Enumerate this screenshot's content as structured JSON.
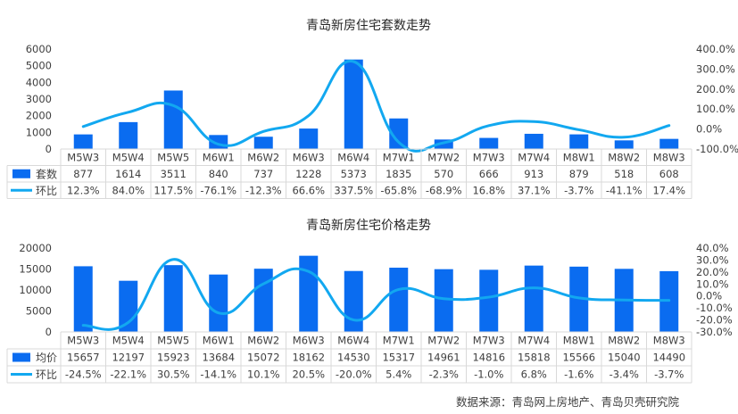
{
  "source_note": "数据来源：青岛网上房地产、青岛贝壳研究院",
  "colors": {
    "bar": "#0a6cf0",
    "line": "#12a8f0",
    "grid": "#d9d9d9",
    "text": "#404040"
  },
  "chart_data": [
    {
      "type": "bar+line",
      "title": "青岛新房住宅套数走势",
      "categories": [
        "M5W3",
        "M5W4",
        "M5W5",
        "M6W1",
        "M6W2",
        "M6W3",
        "M6W4",
        "M7W1",
        "M7W2",
        "M7W3",
        "M7W4",
        "M8W1",
        "M8W2",
        "M8W3"
      ],
      "bar_series": {
        "name": "套数",
        "values": [
          877,
          1614,
          3511,
          840,
          737,
          1228,
          5373,
          1835,
          570,
          666,
          913,
          879,
          518,
          608
        ]
      },
      "line_series": {
        "name": "环比",
        "values": [
          12.3,
          84.0,
          117.5,
          -76.1,
          -12.3,
          66.6,
          337.5,
          -65.8,
          -68.9,
          16.8,
          37.1,
          -3.7,
          -41.1,
          17.4
        ],
        "labels": [
          "12.3%",
          "84.0%",
          "117.5%",
          "-76.1%",
          "-12.3%",
          "66.6%",
          "337.5%",
          "-65.8%",
          "-68.9%",
          "16.8%",
          "37.1%",
          "-3.7%",
          "-41.1%",
          "17.4%"
        ]
      },
      "y_left": {
        "min": 0,
        "max": 6000,
        "ticks": [
          "0",
          "1000",
          "2000",
          "3000",
          "4000",
          "5000",
          "6000"
        ]
      },
      "y_right": {
        "min": -100,
        "max": 400,
        "ticks": [
          "-100.0%",
          "0.0%",
          "100.0%",
          "200.0%",
          "300.0%",
          "400.0%"
        ]
      },
      "bar_labels": [
        "877",
        "1614",
        "3511",
        "840",
        "737",
        "1228",
        "5373",
        "1835",
        "570",
        "666",
        "913",
        "879",
        "518",
        "608"
      ],
      "legend": "data-table"
    },
    {
      "type": "bar+line",
      "title": "青岛新房住宅价格走势",
      "categories": [
        "M5W3",
        "M5W4",
        "M5W5",
        "M6W1",
        "M6W2",
        "M6W3",
        "M6W4",
        "M7W1",
        "M7W2",
        "M7W3",
        "M7W4",
        "M8W1",
        "M8W2",
        "M8W3"
      ],
      "bar_series": {
        "name": "均价",
        "values": [
          15657,
          12197,
          15923,
          13684,
          15072,
          18162,
          14530,
          15317,
          14961,
          14816,
          15818,
          15566,
          15040,
          14490
        ]
      },
      "line_series": {
        "name": "环比",
        "values": [
          -24.5,
          -22.1,
          30.5,
          -14.1,
          10.1,
          20.5,
          -20.0,
          5.4,
          -2.3,
          -1.0,
          6.8,
          -1.6,
          -3.4,
          -3.7
        ],
        "labels": [
          "-24.5%",
          "-22.1%",
          "30.5%",
          "-14.1%",
          "10.1%",
          "20.5%",
          "-20.0%",
          "5.4%",
          "-2.3%",
          "-1.0%",
          "6.8%",
          "-1.6%",
          "-3.4%",
          "-3.7%"
        ]
      },
      "y_left": {
        "min": 0,
        "max": 20000,
        "ticks": [
          "0",
          "5000",
          "10000",
          "15000",
          "20000"
        ]
      },
      "y_right": {
        "min": -30,
        "max": 40,
        "ticks": [
          "-30.0%",
          "-20.0%",
          "-10.0%",
          "0.0%",
          "10.0%",
          "20.0%",
          "30.0%",
          "40.0%"
        ]
      },
      "bar_labels": [
        "15657",
        "12197",
        "15923",
        "13684",
        "15072",
        "18162",
        "14530",
        "15317",
        "14961",
        "14816",
        "15818",
        "15566",
        "15040",
        "14490"
      ],
      "legend": "data-table"
    }
  ]
}
